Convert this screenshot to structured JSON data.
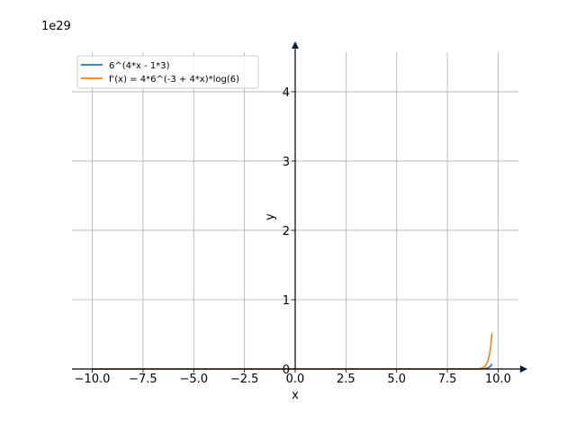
{
  "chart_data": {
    "type": "line",
    "multiplier": "1e29",
    "xlabel": "x",
    "ylabel": "y",
    "xlim": [
      -11.0,
      11.0
    ],
    "ylim": [
      0,
      4.7
    ],
    "x_ticks": [
      {
        "value": -10.0,
        "label": "−10.0"
      },
      {
        "value": -7.5,
        "label": "−7.5"
      },
      {
        "value": -5.0,
        "label": "−5.0"
      },
      {
        "value": -2.5,
        "label": "−2.5"
      },
      {
        "value": 0.0,
        "label": "0.0"
      },
      {
        "value": 2.5,
        "label": "2.5"
      },
      {
        "value": 5.0,
        "label": "5.0"
      },
      {
        "value": 7.5,
        "label": "7.5"
      },
      {
        "value": 10.0,
        "label": "10.0"
      }
    ],
    "y_ticks": [
      {
        "value": 0,
        "label": "0"
      },
      {
        "value": 1,
        "label": "1"
      },
      {
        "value": 2,
        "label": "2"
      },
      {
        "value": 3,
        "label": "3"
      },
      {
        "value": 4,
        "label": "4"
      }
    ],
    "grid": true,
    "legend_position": "top-left",
    "domain": [
      -10.0,
      9.7
    ],
    "series": [
      {
        "name": "6^(4*x - 1*3)",
        "color": "#1f77b4",
        "fn": "f"
      },
      {
        "name": "f'(x) = 4*6^(-3 + 4*x)*log(6)",
        "color": "#ff7f0e",
        "fn": "df"
      }
    ]
  }
}
